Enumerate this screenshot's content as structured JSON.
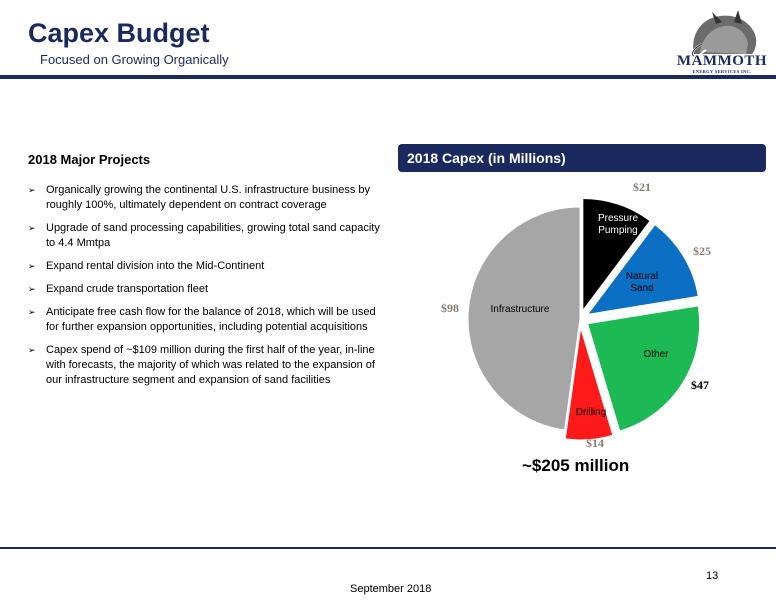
{
  "header": {
    "title": "Capex Budget",
    "subtitle": "Focused on Growing Organically",
    "logo_word": "MAMMOTH",
    "logo_sub": "ENERGY SERVICES INC."
  },
  "left": {
    "heading": "2018 Major Projects",
    "bullet_glyph": "➢",
    "bullets": [
      "Organically growing the continental U.S. infrastructure business by roughly 100%, ultimately dependent on contract coverage",
      "Upgrade of sand processing capabilities, growing total sand capacity to 4.4 Mmtpa",
      "Expand rental division into the Mid-Continent",
      "Expand crude transportation fleet",
      "Anticipate free cash flow for the balance of 2018, which will be used for further expansion opportunities, including potential acquisitions",
      "Capex spend of ~$109 million during the first half of the year, in-line with forecasts, the majority of which was related to the expansion of our infrastructure segment and expansion of sand facilities"
    ]
  },
  "panel": {
    "header": "2018 Capex (in Millions)",
    "total": "~$205 million"
  },
  "chart_data": {
    "type": "pie",
    "title": "2018 Capex (in Millions)",
    "unit": "$M",
    "slices": [
      {
        "label": "Pressure Pumping",
        "label_lines": [
          "Pressure",
          "Pumping"
        ],
        "value": 21,
        "value_label": "$21",
        "color": "#000000",
        "label_color": "#ffffff"
      },
      {
        "label": "Natural Sand",
        "label_lines": [
          "Natural",
          "Sand"
        ],
        "value": 25,
        "value_label": "$25",
        "color": "#0b6fc4",
        "label_color": "#000000"
      },
      {
        "label": "Other",
        "label_lines": [
          "Other"
        ],
        "value": 47,
        "value_label": "$47",
        "color": "#1db954",
        "label_color": "#000000"
      },
      {
        "label": "Drilling",
        "label_lines": [
          "Drilling"
        ],
        "value": 14,
        "value_label": "$14",
        "color": "#ff1a1a",
        "label_color": "#000000"
      },
      {
        "label": "Infrastructure",
        "label_lines": [
          "Infrastructure"
        ],
        "value": 98,
        "value_label": "$98",
        "color": "#a6a6a6",
        "label_color": "#000000"
      }
    ],
    "total_label": "~$205 million"
  },
  "footer": {
    "page_number": "13",
    "date": "September 2018"
  },
  "colors": {
    "navy": "#1a2a5e",
    "value_label": "#8a7e72"
  }
}
